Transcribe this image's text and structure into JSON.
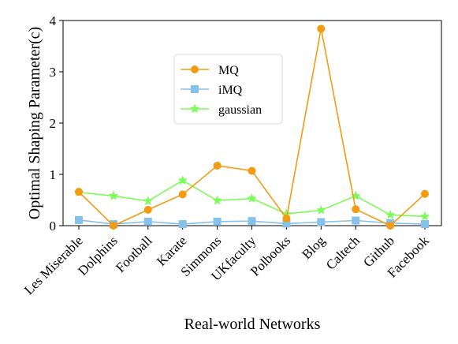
{
  "chart_data": {
    "type": "line",
    "xlabel": "Real-world Networks",
    "ylabel": "Optimal Shaping Parameter(c)",
    "ylim": [
      0,
      4
    ],
    "yticks": [
      "0",
      "1",
      "2",
      "3",
      "4"
    ],
    "categories": [
      "Les Miserable",
      "Dolphins",
      "Football",
      "Karate",
      "Simmons",
      "UKfaculty",
      "Polbooks",
      "Blog",
      "Caltech",
      "Github",
      "Facebook"
    ],
    "legend_position": "upper-center",
    "series": [
      {
        "name": "MQ",
        "marker": "circle",
        "color": "#F39C12",
        "values": [
          0.66,
          0.0,
          0.31,
          0.61,
          1.17,
          1.07,
          0.14,
          3.84,
          0.32,
          0.0,
          0.62
        ]
      },
      {
        "name": "iMQ",
        "marker": "square",
        "color": "#85C1E9",
        "values": [
          0.11,
          0.03,
          0.08,
          0.03,
          0.08,
          0.09,
          0.04,
          0.07,
          0.1,
          0.05,
          0.03
        ]
      },
      {
        "name": "gaussian",
        "marker": "star",
        "color": "#7CFC5A",
        "values": [
          0.65,
          0.58,
          0.48,
          0.88,
          0.49,
          0.53,
          0.23,
          0.3,
          0.58,
          0.21,
          0.18
        ]
      }
    ]
  }
}
